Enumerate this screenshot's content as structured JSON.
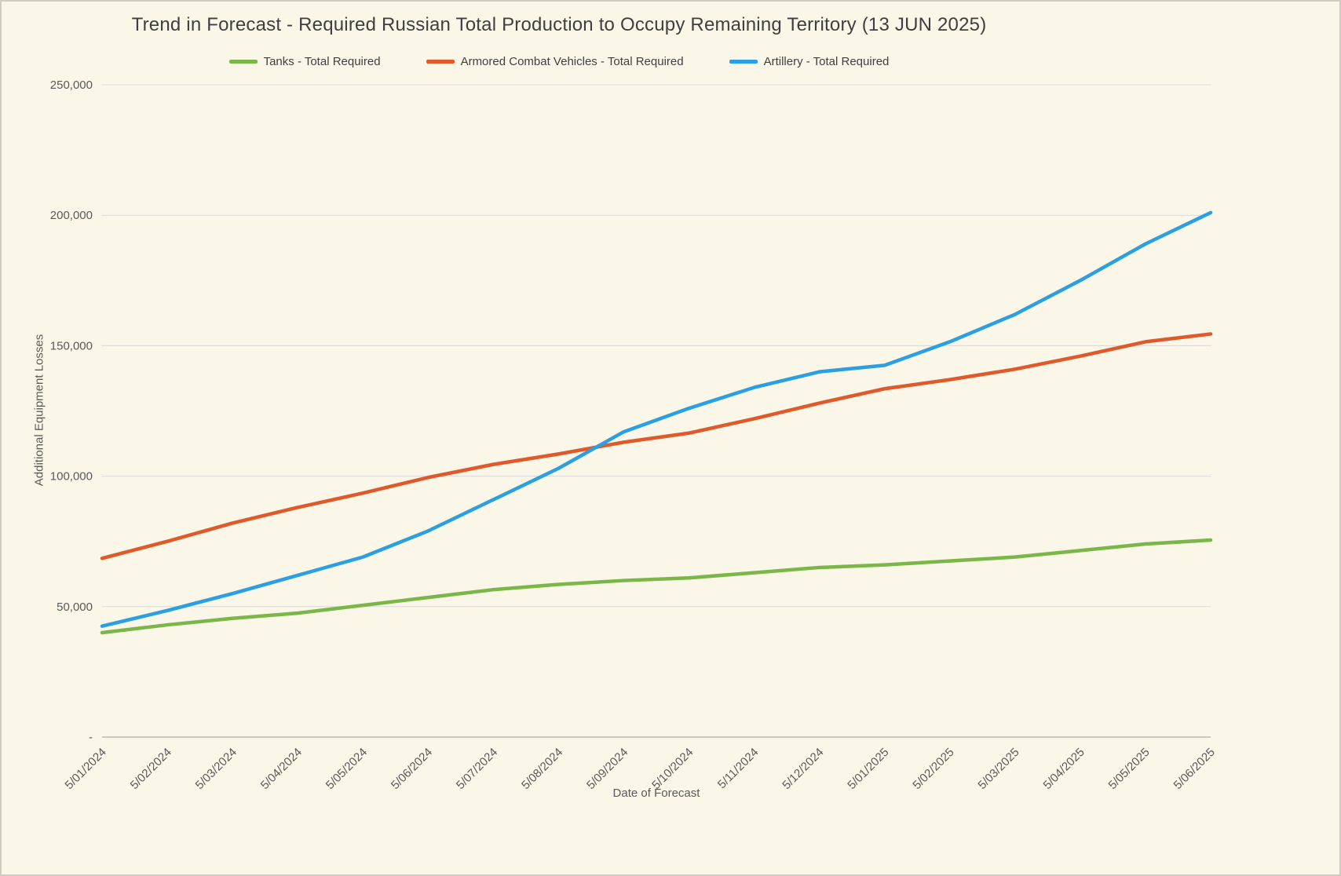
{
  "chart_data": {
    "type": "line",
    "title": "Trend in Forecast - Required Russian Total Production to Occupy Remaining Territory (13 JUN 2025)",
    "xlabel": "Date of Forecast",
    "ylabel": "Additional Equipment Losses",
    "ylim": [
      0,
      250000
    ],
    "ytick_step": 50000,
    "ytick_labels": [
      "-",
      "50,000",
      "100,000",
      "150,000",
      "200,000",
      "250,000"
    ],
    "grid": true,
    "legend_position": "top",
    "background_color": "#faf6e8",
    "gridline_color": "#d9d9d9",
    "axis_line_color": "#bdbcb2",
    "tick_label_color": "#595959",
    "categories": [
      "5/01/2024",
      "5/02/2024",
      "5/03/2024",
      "5/04/2024",
      "5/05/2024",
      "5/06/2024",
      "5/07/2024",
      "5/08/2024",
      "5/09/2024",
      "5/10/2024",
      "5/11/2024",
      "5/12/2024",
      "5/01/2025",
      "5/02/2025",
      "5/03/2025",
      "5/04/2025",
      "5/05/2025",
      "5/06/2025"
    ],
    "series": [
      {
        "name": "Tanks - Total Required",
        "color": "#7bb648",
        "values": [
          40000,
          43000,
          45500,
          47500,
          50500,
          53500,
          56500,
          58500,
          60000,
          61000,
          63000,
          65000,
          66000,
          67500,
          69000,
          71500,
          74000,
          75500
        ]
      },
      {
        "name": "Armored Combat Vehicles - Total Required",
        "color": "#e0592a",
        "values": [
          68500,
          75000,
          82000,
          88000,
          93500,
          99500,
          104500,
          108500,
          113000,
          116500,
          122000,
          128000,
          133500,
          137000,
          141000,
          146000,
          151500,
          154500
        ]
      },
      {
        "name": "Artillery - Total Required",
        "color": "#2b9fe3",
        "values": [
          42500,
          48500,
          55000,
          62000,
          69000,
          79000,
          91000,
          103000,
          117000,
          126000,
          134000,
          140000,
          142500,
          151500,
          162000,
          175000,
          189000,
          201000
        ]
      }
    ]
  }
}
